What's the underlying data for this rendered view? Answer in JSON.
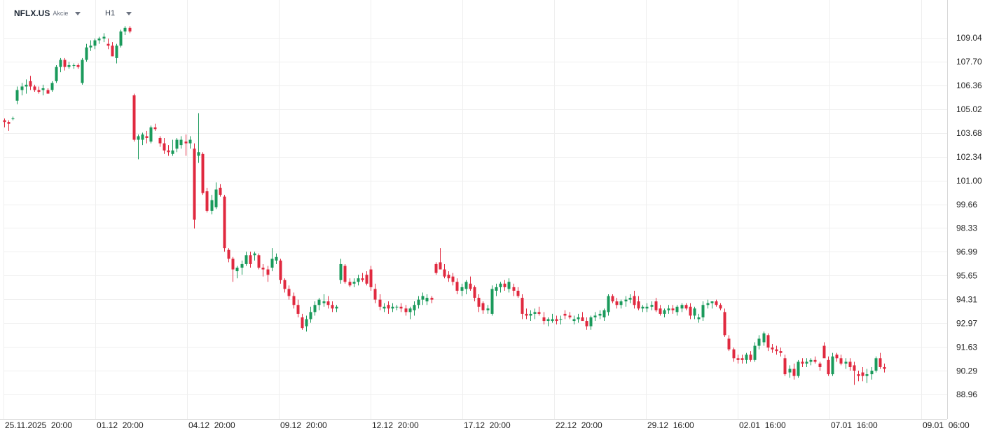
{
  "header": {
    "symbol": "NFLX.US",
    "asset_type": "Akcie",
    "timeframe": "H1"
  },
  "colors": {
    "up": "#1a9a5b",
    "down": "#e0293f",
    "grid": "#efefef",
    "axis_text": "#222222"
  },
  "chart_data": {
    "type": "candlestick",
    "title": "",
    "xlabel": "",
    "ylabel": "",
    "ylim": [
      88.96,
      110.24
    ],
    "y_ticks": [
      "109.04",
      "107.70",
      "106.36",
      "105.02",
      "103.68",
      "102.34",
      "101.00",
      "99.66",
      "98.33",
      "96.99",
      "95.65",
      "94.31",
      "92.97",
      "91.63",
      "90.29",
      "88.96"
    ],
    "x_ticks": [
      {
        "date": "25.11.2025",
        "time": "20:00"
      },
      {
        "date": "01.12",
        "time": "20:00"
      },
      {
        "date": "04.12",
        "time": "20:00"
      },
      {
        "date": "09.12",
        "time": "20:00"
      },
      {
        "date": "12.12",
        "time": "20:00"
      },
      {
        "date": "17.12",
        "time": "20:00"
      },
      {
        "date": "22.12",
        "time": "20:00"
      },
      {
        "date": "29.12",
        "time": "16:00"
      },
      {
        "date": "02.01",
        "time": "16:00"
      },
      {
        "date": "07.01",
        "time": "16:00"
      },
      {
        "date": "09.01",
        "time": "06:00"
      }
    ],
    "grid": true,
    "candles": [
      [
        104.4,
        104.5,
        104.0,
        104.3
      ],
      [
        104.3,
        104.4,
        103.8,
        104.2
      ],
      [
        104.5,
        104.6,
        104.4,
        104.5
      ],
      [
        105.5,
        106.3,
        105.3,
        106.1
      ],
      [
        106.1,
        106.5,
        105.8,
        106.3
      ],
      [
        106.3,
        106.7,
        105.9,
        106.4
      ],
      [
        106.6,
        106.9,
        106.1,
        106.3
      ],
      [
        106.3,
        106.4,
        106.0,
        106.1
      ],
      [
        106.1,
        106.3,
        105.9,
        106.0
      ],
      [
        106.1,
        106.4,
        105.8,
        106.2
      ],
      [
        106.1,
        106.2,
        105.9,
        105.9
      ],
      [
        106.1,
        106.6,
        106.0,
        106.5
      ],
      [
        106.6,
        107.5,
        106.5,
        107.4
      ],
      [
        107.4,
        107.9,
        107.1,
        107.8
      ],
      [
        107.8,
        107.9,
        107.2,
        107.4
      ],
      [
        107.4,
        107.7,
        107.3,
        107.5
      ],
      [
        107.5,
        107.6,
        107.3,
        107.5
      ],
      [
        107.5,
        107.6,
        107.3,
        107.4
      ],
      [
        106.5,
        107.9,
        106.4,
        107.8
      ],
      [
        107.8,
        108.7,
        107.7,
        108.5
      ],
      [
        108.5,
        108.9,
        108.3,
        108.6
      ],
      [
        108.6,
        109.0,
        108.4,
        108.9
      ],
      [
        108.9,
        109.1,
        108.7,
        109.0
      ],
      [
        109.0,
        109.3,
        108.8,
        109.1
      ],
      [
        108.7,
        109.0,
        108.4,
        108.6
      ],
      [
        108.6,
        108.8,
        108.0,
        108.0
      ],
      [
        107.9,
        108.7,
        107.6,
        108.6
      ],
      [
        108.6,
        109.5,
        108.5,
        109.4
      ],
      [
        109.4,
        109.7,
        109.2,
        109.6
      ],
      [
        109.6,
        109.7,
        109.3,
        109.4
      ],
      [
        105.8,
        105.9,
        103.2,
        103.3
      ],
      [
        103.3,
        103.6,
        102.2,
        103.5
      ],
      [
        103.3,
        103.7,
        103.0,
        103.6
      ],
      [
        103.5,
        103.8,
        103.1,
        103.4
      ],
      [
        103.2,
        104.1,
        103.1,
        104.0
      ],
      [
        104.0,
        104.2,
        103.8,
        103.9
      ],
      [
        103.4,
        103.5,
        102.9,
        103.1
      ],
      [
        103.1,
        103.4,
        102.5,
        102.7
      ],
      [
        102.7,
        103.0,
        102.4,
        102.6
      ],
      [
        102.5,
        103.3,
        102.4,
        102.7
      ],
      [
        102.8,
        103.4,
        102.6,
        103.3
      ],
      [
        103.0,
        103.5,
        102.8,
        103.3
      ],
      [
        103.2,
        103.6,
        102.4,
        103.1
      ],
      [
        103.1,
        103.5,
        102.8,
        103.3
      ],
      [
        102.8,
        103.1,
        98.3,
        98.8
      ],
      [
        102.4,
        104.8,
        102.0,
        102.6
      ],
      [
        102.5,
        102.6,
        100.2,
        100.3
      ],
      [
        100.4,
        100.6,
        99.2,
        99.3
      ],
      [
        99.3,
        100.2,
        99.1,
        99.9
      ],
      [
        99.5,
        100.9,
        99.4,
        100.5
      ],
      [
        100.6,
        100.8,
        100.1,
        100.2
      ],
      [
        100.1,
        100.2,
        97.0,
        97.2
      ],
      [
        97.1,
        97.2,
        96.4,
        96.6
      ],
      [
        96.6,
        96.7,
        95.3,
        96.0
      ],
      [
        95.9,
        96.2,
        95.5,
        96.1
      ],
      [
        96.1,
        96.5,
        95.7,
        96.3
      ],
      [
        96.3,
        97.0,
        96.2,
        96.8
      ],
      [
        96.8,
        97.0,
        96.1,
        96.3
      ],
      [
        96.8,
        97.0,
        96.5,
        96.9
      ],
      [
        96.8,
        96.9,
        96.0,
        96.1
      ],
      [
        96.1,
        96.3,
        95.6,
        96.0
      ],
      [
        96.0,
        96.2,
        95.3,
        95.7
      ],
      [
        96.1,
        97.2,
        95.9,
        96.6
      ],
      [
        96.5,
        96.9,
        96.3,
        96.7
      ],
      [
        96.5,
        96.6,
        95.2,
        95.4
      ],
      [
        95.4,
        95.5,
        94.7,
        94.9
      ],
      [
        94.9,
        95.1,
        94.3,
        94.5
      ],
      [
        94.5,
        94.7,
        93.8,
        94.0
      ],
      [
        94.0,
        94.3,
        93.3,
        93.5
      ],
      [
        93.3,
        93.5,
        92.6,
        92.7
      ],
      [
        92.8,
        93.4,
        92.5,
        93.2
      ],
      [
        93.2,
        93.9,
        93.0,
        93.6
      ],
      [
        93.6,
        94.2,
        93.4,
        94.0
      ],
      [
        94.0,
        94.4,
        93.7,
        94.3
      ],
      [
        94.1,
        94.6,
        93.9,
        94.2
      ],
      [
        94.2,
        94.5,
        93.8,
        94.0
      ],
      [
        94.0,
        94.2,
        93.6,
        93.8
      ],
      [
        93.8,
        94.0,
        93.6,
        93.9
      ],
      [
        95.4,
        96.6,
        95.2,
        96.3
      ],
      [
        96.2,
        96.3,
        95.2,
        95.3
      ],
      [
        95.3,
        95.5,
        95.0,
        95.1
      ],
      [
        95.2,
        95.5,
        95.0,
        95.3
      ],
      [
        95.3,
        95.7,
        95.1,
        95.5
      ],
      [
        95.5,
        95.8,
        95.3,
        95.4
      ],
      [
        95.7,
        95.9,
        95.1,
        95.2
      ],
      [
        96.0,
        96.2,
        94.8,
        95.0
      ],
      [
        94.9,
        95.2,
        94.1,
        94.3
      ],
      [
        94.3,
        94.6,
        93.7,
        93.9
      ],
      [
        93.8,
        94.1,
        93.6,
        93.9
      ],
      [
        94.0,
        94.2,
        93.5,
        93.8
      ],
      [
        93.8,
        94.1,
        93.6,
        93.9
      ],
      [
        93.9,
        94.0,
        93.7,
        93.9
      ],
      [
        93.9,
        94.1,
        93.6,
        93.8
      ],
      [
        93.8,
        94.0,
        93.4,
        93.6
      ],
      [
        93.6,
        93.9,
        93.2,
        93.8
      ],
      [
        93.7,
        94.2,
        93.4,
        94.0
      ],
      [
        94.0,
        94.5,
        93.8,
        94.3
      ],
      [
        94.3,
        94.7,
        94.0,
        94.5
      ],
      [
        94.2,
        94.6,
        94.0,
        94.4
      ],
      [
        94.4,
        94.5,
        94.1,
        94.3
      ],
      [
        96.3,
        96.4,
        95.7,
        95.8
      ],
      [
        96.4,
        97.2,
        96.0,
        96.0
      ],
      [
        96.0,
        96.3,
        95.5,
        95.6
      ],
      [
        95.7,
        95.9,
        95.3,
        95.5
      ],
      [
        95.6,
        95.8,
        95.1,
        95.3
      ],
      [
        95.3,
        95.5,
        94.6,
        94.8
      ],
      [
        94.8,
        95.2,
        94.5,
        95.0
      ],
      [
        94.9,
        95.4,
        94.6,
        95.3
      ],
      [
        95.2,
        95.6,
        94.8,
        94.9
      ],
      [
        95.0,
        95.1,
        94.2,
        94.4
      ],
      [
        94.4,
        94.6,
        93.6,
        93.9
      ],
      [
        94.1,
        94.2,
        93.5,
        93.7
      ],
      [
        93.7,
        94.0,
        93.5,
        93.8
      ],
      [
        93.5,
        95.1,
        93.4,
        94.9
      ],
      [
        94.8,
        95.2,
        94.5,
        95.0
      ],
      [
        95.0,
        95.3,
        94.7,
        95.2
      ],
      [
        95.2,
        95.4,
        94.8,
        95.0
      ],
      [
        94.9,
        95.5,
        94.7,
        95.3
      ],
      [
        95.0,
        95.2,
        94.5,
        94.8
      ],
      [
        94.8,
        95.0,
        94.4,
        94.5
      ],
      [
        94.4,
        94.6,
        93.2,
        93.5
      ],
      [
        93.5,
        93.8,
        93.2,
        93.4
      ],
      [
        93.4,
        93.7,
        93.1,
        93.5
      ],
      [
        93.5,
        93.8,
        93.2,
        93.6
      ],
      [
        93.6,
        93.9,
        93.4,
        93.5
      ],
      [
        93.3,
        93.6,
        92.9,
        93.1
      ],
      [
        93.1,
        93.3,
        92.8,
        93.2
      ],
      [
        93.1,
        93.5,
        93.0,
        93.2
      ],
      [
        93.2,
        93.4,
        92.9,
        93.1
      ],
      [
        93.2,
        93.4,
        92.9,
        93.2
      ],
      [
        93.5,
        93.7,
        93.2,
        93.4
      ],
      [
        93.4,
        93.6,
        93.2,
        93.3
      ],
      [
        93.1,
        93.4,
        92.9,
        93.2
      ],
      [
        93.2,
        93.5,
        93.0,
        93.3
      ],
      [
        93.3,
        93.6,
        93.1,
        93.1
      ],
      [
        93.1,
        93.3,
        92.6,
        92.8
      ],
      [
        92.8,
        93.4,
        92.6,
        93.3
      ],
      [
        93.3,
        93.6,
        93.1,
        93.4
      ],
      [
        93.4,
        93.7,
        93.2,
        93.5
      ],
      [
        93.3,
        93.8,
        93.1,
        93.7
      ],
      [
        93.6,
        94.6,
        93.4,
        94.5
      ],
      [
        94.5,
        94.6,
        94.1,
        94.2
      ],
      [
        94.2,
        94.4,
        93.8,
        94.0
      ],
      [
        94.0,
        94.3,
        93.8,
        94.2
      ],
      [
        94.2,
        94.5,
        93.9,
        94.3
      ],
      [
        94.3,
        94.6,
        94.1,
        94.4
      ],
      [
        94.5,
        94.8,
        93.8,
        94.0
      ],
      [
        94.2,
        94.5,
        93.7,
        93.8
      ],
      [
        93.8,
        94.0,
        93.6,
        93.9
      ],
      [
        93.8,
        94.1,
        93.6,
        93.9
      ],
      [
        93.9,
        94.2,
        93.7,
        94.0
      ],
      [
        94.2,
        94.4,
        93.6,
        93.7
      ],
      [
        93.8,
        94.0,
        93.4,
        93.5
      ],
      [
        93.5,
        93.8,
        93.3,
        93.7
      ],
      [
        93.7,
        94.0,
        93.5,
        93.8
      ],
      [
        93.8,
        94.0,
        93.5,
        93.7
      ],
      [
        93.6,
        94.0,
        93.4,
        93.9
      ],
      [
        93.8,
        94.1,
        93.6,
        94.0
      ],
      [
        94.0,
        94.1,
        93.7,
        93.8
      ],
      [
        93.9,
        94.1,
        93.2,
        93.4
      ],
      [
        93.4,
        93.9,
        93.2,
        93.8
      ],
      [
        93.2,
        93.5,
        93.0,
        93.3
      ],
      [
        93.3,
        94.2,
        93.1,
        94.0
      ],
      [
        94.0,
        94.3,
        93.8,
        94.1
      ],
      [
        94.1,
        94.2,
        93.8,
        94.2
      ],
      [
        94.2,
        94.3,
        93.9,
        94.0
      ],
      [
        94.0,
        94.1,
        93.7,
        93.8
      ],
      [
        93.6,
        93.8,
        92.2,
        92.3
      ],
      [
        92.1,
        92.3,
        91.4,
        91.5
      ],
      [
        91.5,
        91.6,
        90.8,
        91.0
      ],
      [
        91.0,
        91.2,
        90.7,
        90.9
      ],
      [
        91.0,
        91.2,
        90.7,
        90.9
      ],
      [
        90.9,
        91.3,
        90.7,
        91.2
      ],
      [
        91.2,
        91.4,
        90.8,
        90.9
      ],
      [
        90.9,
        91.9,
        90.8,
        91.7
      ],
      [
        91.7,
        92.3,
        91.5,
        92.1
      ],
      [
        91.9,
        92.5,
        91.7,
        92.4
      ],
      [
        92.3,
        92.4,
        91.4,
        91.6
      ],
      [
        91.6,
        91.8,
        91.3,
        91.5
      ],
      [
        91.5,
        91.7,
        91.2,
        91.4
      ],
      [
        91.4,
        91.6,
        91.1,
        91.3
      ],
      [
        91.0,
        91.2,
        90.0,
        90.1
      ],
      [
        90.2,
        90.6,
        89.9,
        90.4
      ],
      [
        90.4,
        90.7,
        89.8,
        90.0
      ],
      [
        90.0,
        90.9,
        89.9,
        90.8
      ],
      [
        90.8,
        91.0,
        90.5,
        90.7
      ],
      [
        90.7,
        91.0,
        90.5,
        90.8
      ],
      [
        90.8,
        91.0,
        90.6,
        90.9
      ],
      [
        90.9,
        91.1,
        90.7,
        90.8
      ],
      [
        90.7,
        90.8,
        90.3,
        90.5
      ],
      [
        91.7,
        91.9,
        91.2,
        91.0
      ],
      [
        90.9,
        91.1,
        90.0,
        90.1
      ],
      [
        90.1,
        91.3,
        90.0,
        91.1
      ],
      [
        91.2,
        91.3,
        90.8,
        91.0
      ],
      [
        91.0,
        91.2,
        90.6,
        90.7
      ],
      [
        90.7,
        91.0,
        90.4,
        90.8
      ],
      [
        90.8,
        91.0,
        90.3,
        90.5
      ],
      [
        90.6,
        90.8,
        89.5,
        90.3
      ],
      [
        90.1,
        90.3,
        89.7,
        90.0
      ],
      [
        90.2,
        90.5,
        89.7,
        90.0
      ],
      [
        90.0,
        90.4,
        89.6,
        90.1
      ],
      [
        90.1,
        90.5,
        89.8,
        90.3
      ],
      [
        90.3,
        91.1,
        90.2,
        91.0
      ],
      [
        91.0,
        91.3,
        90.4,
        90.5
      ],
      [
        90.5,
        90.7,
        90.2,
        90.4
      ]
    ]
  }
}
